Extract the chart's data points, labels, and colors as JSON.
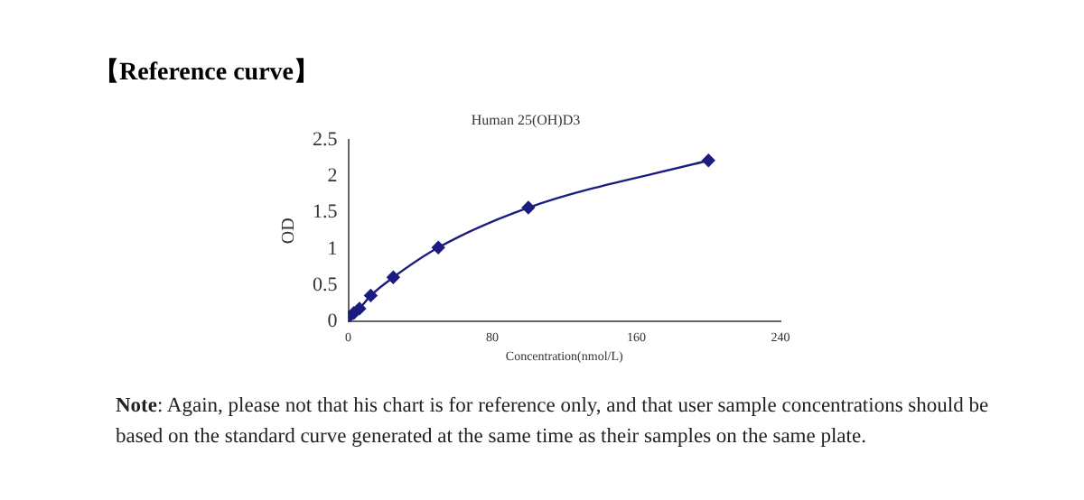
{
  "chart_data": {
    "type": "line",
    "title": "Human 25(OH)D3",
    "xlabel": "Concentration(nmol/L)",
    "ylabel": "OD",
    "annotations": [
      "【Reference curve】",
      "Note: Again, please not that his chart is for reference only, and that user sample concentrations should be based on the standard curve generated at the same time as their samples on the same plate."
    ],
    "x": [
      0,
      3.125,
      6.25,
      12.5,
      25,
      50,
      100,
      200
    ],
    "series": [
      {
        "color": "#1c1c80",
        "values": [
          0.06,
          0.12,
          0.18,
          0.36,
          0.61,
          1.02,
          1.57,
          2.22
        ]
      }
    ],
    "xlim": [
      0,
      240
    ],
    "xticks": [
      0,
      80,
      160,
      240
    ],
    "ylim": [
      0,
      2.5
    ],
    "yticks": [
      0,
      0.5,
      1,
      1.5,
      2,
      2.5
    ],
    "grid": false,
    "legend": false,
    "marker": "diamond",
    "line_style": "solid"
  }
}
